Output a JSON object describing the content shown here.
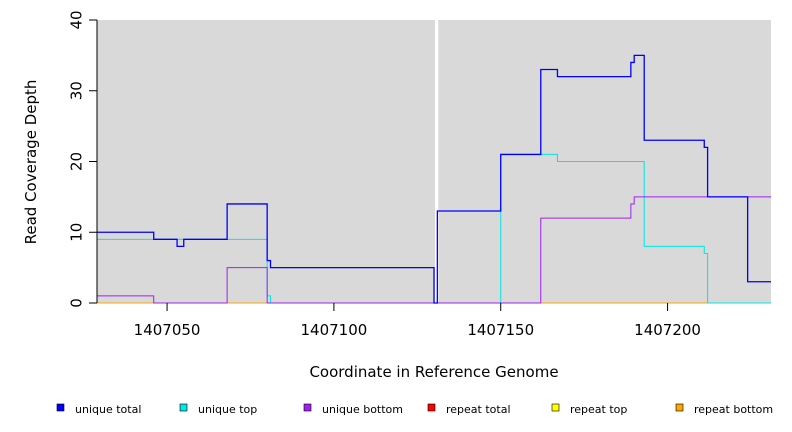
{
  "chart_data": {
    "type": "line",
    "xlabel": "Coordinate in Reference Genome",
    "ylabel": "Read Coverage Depth",
    "xlim": [
      1407029,
      1407231
    ],
    "ylim": [
      0,
      40
    ],
    "x_ticks": [
      1407050,
      1407100,
      1407150,
      1407200
    ],
    "y_ticks": [
      0,
      10,
      20,
      30,
      40
    ],
    "grid": false,
    "background_color": "#d9d9d9",
    "gap_range": [
      1407130,
      1407131
    ],
    "legend_position": "bottom",
    "legend": [
      "unique total",
      "unique top",
      "unique bottom",
      "repeat total",
      "repeat top",
      "repeat bottom"
    ],
    "series": [
      {
        "name": "unique total",
        "color": "#0000ff",
        "x": [
          1407029,
          1407046,
          1407046,
          1407050,
          1407050,
          1407053,
          1407053,
          1407055,
          1407055,
          1407068,
          1407068,
          1407080,
          1407080,
          1407081,
          1407081,
          1407130,
          1407130,
          1407131,
          1407131,
          1407150,
          1407150,
          1407162,
          1407162,
          1407167,
          1407167,
          1407189,
          1407189,
          1407190,
          1407190,
          1407193,
          1407193,
          1407211,
          1407211,
          1407212,
          1407212,
          1407224,
          1407224,
          1407231
        ],
        "y": [
          10,
          10,
          9,
          9,
          9,
          9,
          8,
          8,
          9,
          9,
          14,
          14,
          6,
          6,
          5,
          5,
          0,
          0,
          13,
          13,
          21,
          21,
          33,
          33,
          32,
          32,
          34,
          34,
          35,
          35,
          23,
          23,
          22,
          22,
          15,
          15,
          3,
          3
        ]
      },
      {
        "name": "unique top",
        "color": "#00e5e5",
        "x": [
          1407029,
          1407080,
          1407080,
          1407081,
          1407081,
          1407130,
          1407130,
          1407131,
          1407131,
          1407150,
          1407150,
          1407167,
          1407167,
          1407193,
          1407193,
          1407211,
          1407211,
          1407212,
          1407212,
          1407231
        ],
        "y": [
          9,
          9,
          1,
          1,
          0,
          0,
          0,
          0,
          0,
          0,
          21,
          21,
          20,
          20,
          8,
          8,
          7,
          7,
          0,
          0
        ]
      },
      {
        "name": "unique bottom",
        "color": "#a020f0",
        "x": [
          1407029,
          1407046,
          1407046,
          1407068,
          1407068,
          1407080,
          1407080,
          1407162,
          1407162,
          1407189,
          1407189,
          1407190,
          1407190,
          1407231
        ],
        "y": [
          1,
          1,
          0,
          0,
          5,
          5,
          0,
          0,
          12,
          12,
          14,
          14,
          15,
          15
        ]
      },
      {
        "name": "repeat total",
        "color": "#ff0000",
        "x": [
          1407029,
          1407231
        ],
        "y": [
          0,
          0
        ]
      },
      {
        "name": "repeat top",
        "color": "#ffff00",
        "x": [
          1407029,
          1407231
        ],
        "y": [
          0,
          0
        ]
      },
      {
        "name": "repeat bottom",
        "color": "#ffa500",
        "x": [
          1407029,
          1407231
        ],
        "y": [
          0,
          0
        ]
      }
    ]
  }
}
